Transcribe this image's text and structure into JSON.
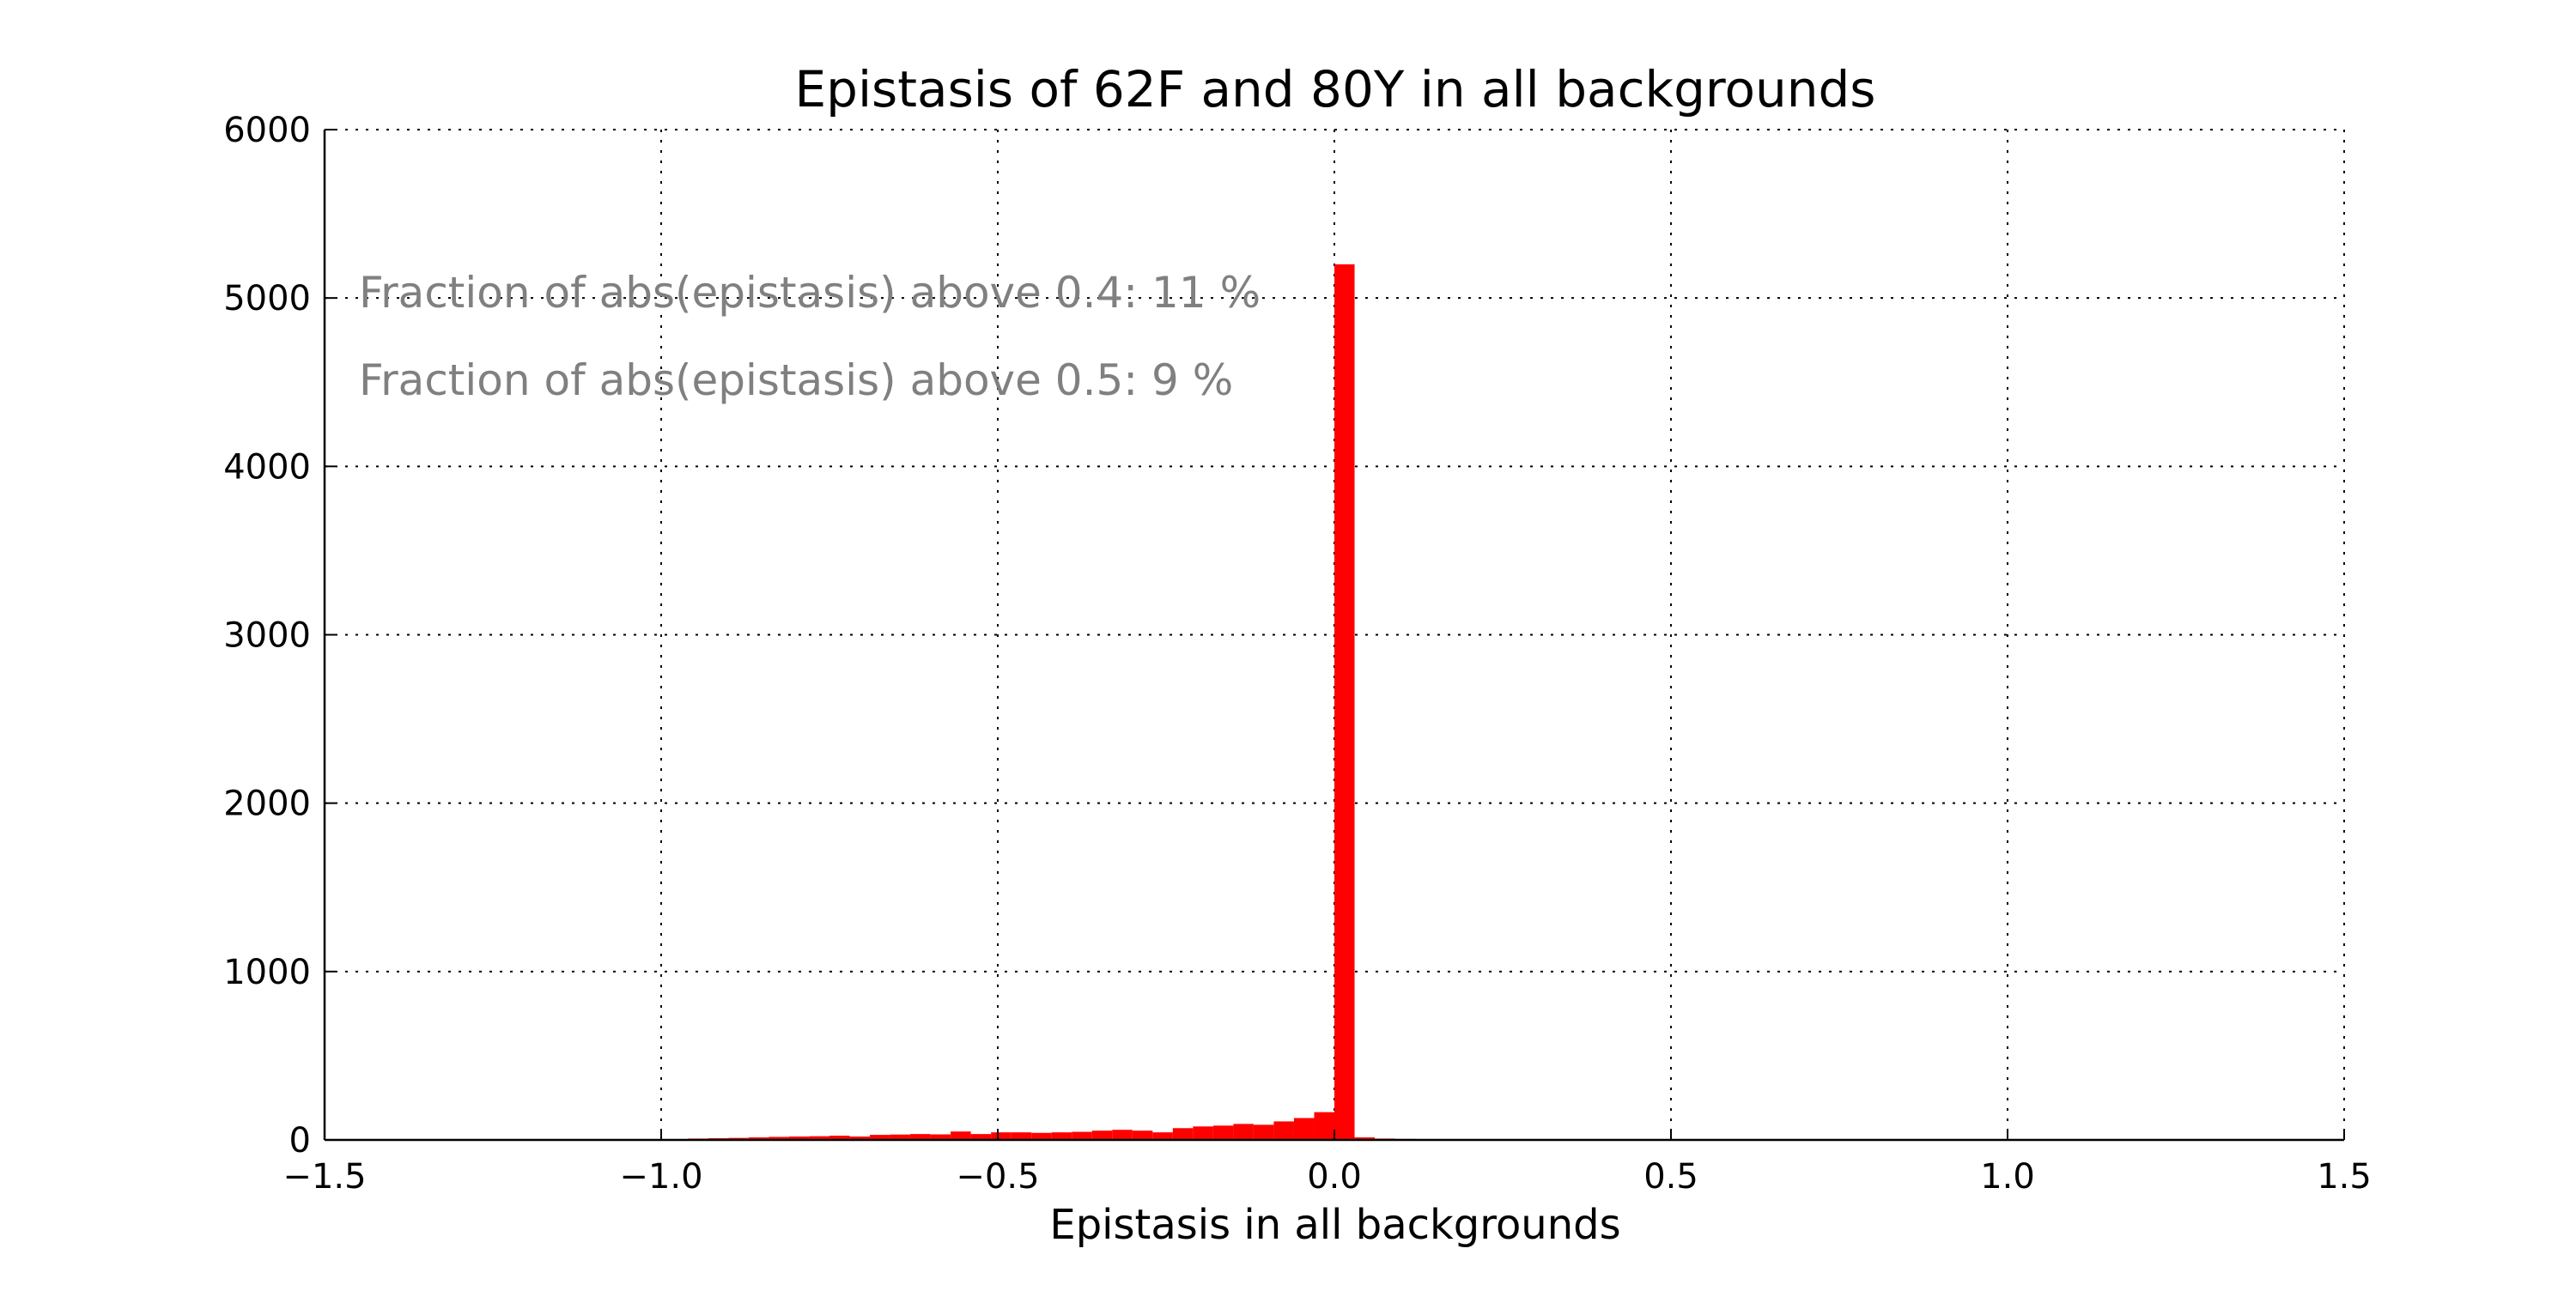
{
  "chart_data": {
    "type": "bar",
    "title": "Epistasis of 62F and 80Y in all backgrounds",
    "xlabel": "Epistasis in all backgrounds",
    "ylabel": "",
    "xlim": [
      -1.5,
      1.5
    ],
    "ylim": [
      0,
      6000
    ],
    "x_ticks": [
      -1.5,
      -1.0,
      -0.5,
      0.0,
      0.5,
      1.0,
      1.5
    ],
    "x_tick_labels": [
      "−1.5",
      "−1.0",
      "−0.5",
      "0.0",
      "0.5",
      "1.0",
      "1.5"
    ],
    "y_ticks": [
      0,
      1000,
      2000,
      3000,
      4000,
      5000,
      6000
    ],
    "y_tick_labels": [
      "0",
      "1000",
      "2000",
      "3000",
      "4000",
      "5000",
      "6000"
    ],
    "grid": true,
    "bar_color": "#ff0000",
    "bin_width": 0.03,
    "bins": [
      {
        "x": -0.96,
        "value": 8
      },
      {
        "x": -0.93,
        "value": 10
      },
      {
        "x": -0.9,
        "value": 12
      },
      {
        "x": -0.87,
        "value": 15
      },
      {
        "x": -0.84,
        "value": 18
      },
      {
        "x": -0.81,
        "value": 20
      },
      {
        "x": -0.78,
        "value": 22
      },
      {
        "x": -0.75,
        "value": 25
      },
      {
        "x": -0.72,
        "value": 20
      },
      {
        "x": -0.69,
        "value": 30
      },
      {
        "x": -0.66,
        "value": 32
      },
      {
        "x": -0.63,
        "value": 35
      },
      {
        "x": -0.6,
        "value": 33
      },
      {
        "x": -0.57,
        "value": 50
      },
      {
        "x": -0.54,
        "value": 35
      },
      {
        "x": -0.51,
        "value": 45
      },
      {
        "x": -0.48,
        "value": 45
      },
      {
        "x": -0.45,
        "value": 42
      },
      {
        "x": -0.42,
        "value": 45
      },
      {
        "x": -0.39,
        "value": 48
      },
      {
        "x": -0.36,
        "value": 55
      },
      {
        "x": -0.33,
        "value": 60
      },
      {
        "x": -0.3,
        "value": 55
      },
      {
        "x": -0.27,
        "value": 45
      },
      {
        "x": -0.24,
        "value": 70
      },
      {
        "x": -0.21,
        "value": 80
      },
      {
        "x": -0.18,
        "value": 85
      },
      {
        "x": -0.15,
        "value": 95
      },
      {
        "x": -0.12,
        "value": 90
      },
      {
        "x": -0.09,
        "value": 110
      },
      {
        "x": -0.06,
        "value": 130
      },
      {
        "x": -0.03,
        "value": 165
      },
      {
        "x": -0.0,
        "value": 170
      },
      {
        "x": 0.0,
        "value": 5200
      },
      {
        "x": 0.03,
        "value": 15
      },
      {
        "x": 0.06,
        "value": 8
      },
      {
        "x": 0.09,
        "value": 6
      },
      {
        "x": 0.12,
        "value": 5
      },
      {
        "x": 0.15,
        "value": 3
      }
    ],
    "annotations": [
      {
        "text": "Fraction of abs(epistasis) above 0.4: 11 %",
        "color": "#808080"
      },
      {
        "text": "Fraction of abs(epistasis) above 0.5: 9 %",
        "color": "#808080"
      }
    ]
  }
}
